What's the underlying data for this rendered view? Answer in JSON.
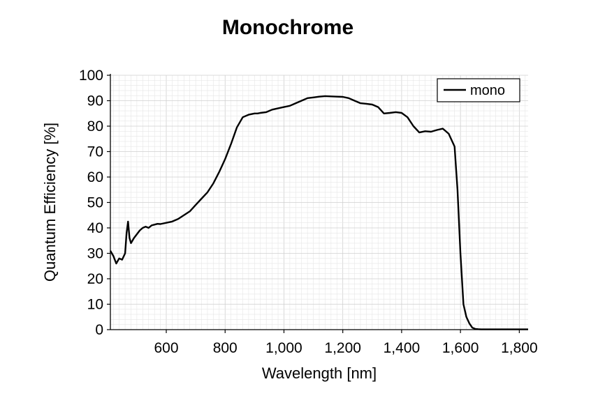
{
  "chart_data": {
    "type": "line",
    "title": "Monochrome",
    "xlabel": "Wavelength [nm]",
    "ylabel": "Quantum Efficiency [%]",
    "xlim": [
      410,
      1830
    ],
    "ylim": [
      0,
      100
    ],
    "x_ticks": [
      600,
      800,
      1000,
      1200,
      1400,
      1600,
      1800
    ],
    "x_tick_labels": [
      "600",
      "800",
      "1,000",
      "1,200",
      "1,400",
      "1,600",
      "1,800"
    ],
    "y_ticks": [
      0,
      10,
      20,
      30,
      40,
      50,
      60,
      70,
      80,
      90,
      100
    ],
    "y_tick_labels": [
      "0",
      "10",
      "20",
      "30",
      "40",
      "50",
      "60",
      "70",
      "80",
      "90",
      "100"
    ],
    "grid": true,
    "legend_position": "top-right",
    "line_color": "#000000",
    "series": [
      {
        "name": "mono",
        "x": [
          410,
          420,
          430,
          440,
          450,
          460,
          465,
          470,
          475,
          480,
          490,
          500,
          510,
          520,
          530,
          540,
          550,
          560,
          570,
          580,
          600,
          620,
          640,
          660,
          680,
          700,
          720,
          740,
          760,
          780,
          800,
          820,
          840,
          860,
          880,
          900,
          910,
          920,
          940,
          960,
          980,
          1000,
          1020,
          1040,
          1060,
          1080,
          1100,
          1120,
          1140,
          1160,
          1180,
          1200,
          1220,
          1240,
          1260,
          1280,
          1300,
          1320,
          1340,
          1360,
          1380,
          1400,
          1420,
          1440,
          1460,
          1480,
          1500,
          1520,
          1540,
          1560,
          1580,
          1590,
          1600,
          1610,
          1620,
          1630,
          1640,
          1650,
          1660,
          1670,
          1680,
          1690,
          1700,
          1710,
          1720,
          1740,
          1760,
          1780,
          1800,
          1830
        ],
        "y": [
          31,
          29,
          26,
          28,
          27.5,
          30,
          38,
          42.5,
          36,
          34,
          36,
          37.5,
          39,
          40,
          40.5,
          40,
          41,
          41.3,
          41.6,
          41.5,
          42,
          42.5,
          43.5,
          45,
          46.5,
          49,
          51.5,
          54,
          57.5,
          62,
          67,
          73,
          79.5,
          83.5,
          84.5,
          85,
          85,
          85.2,
          85.5,
          86.5,
          87,
          87.5,
          88,
          89,
          90,
          91,
          91.3,
          91.6,
          91.8,
          91.7,
          91.6,
          91.5,
          91,
          90,
          89,
          88.8,
          88.5,
          87.5,
          85,
          85.2,
          85.5,
          85.2,
          83.5,
          80,
          77.5,
          78,
          77.8,
          78.5,
          79,
          77,
          72,
          55,
          30,
          10,
          5,
          2.5,
          0.8,
          0.3,
          0.2,
          0.1,
          0.1,
          0.1,
          0.1,
          0.1,
          0.1,
          0.1,
          0.1,
          0.1,
          0.1,
          0.1
        ]
      }
    ]
  }
}
